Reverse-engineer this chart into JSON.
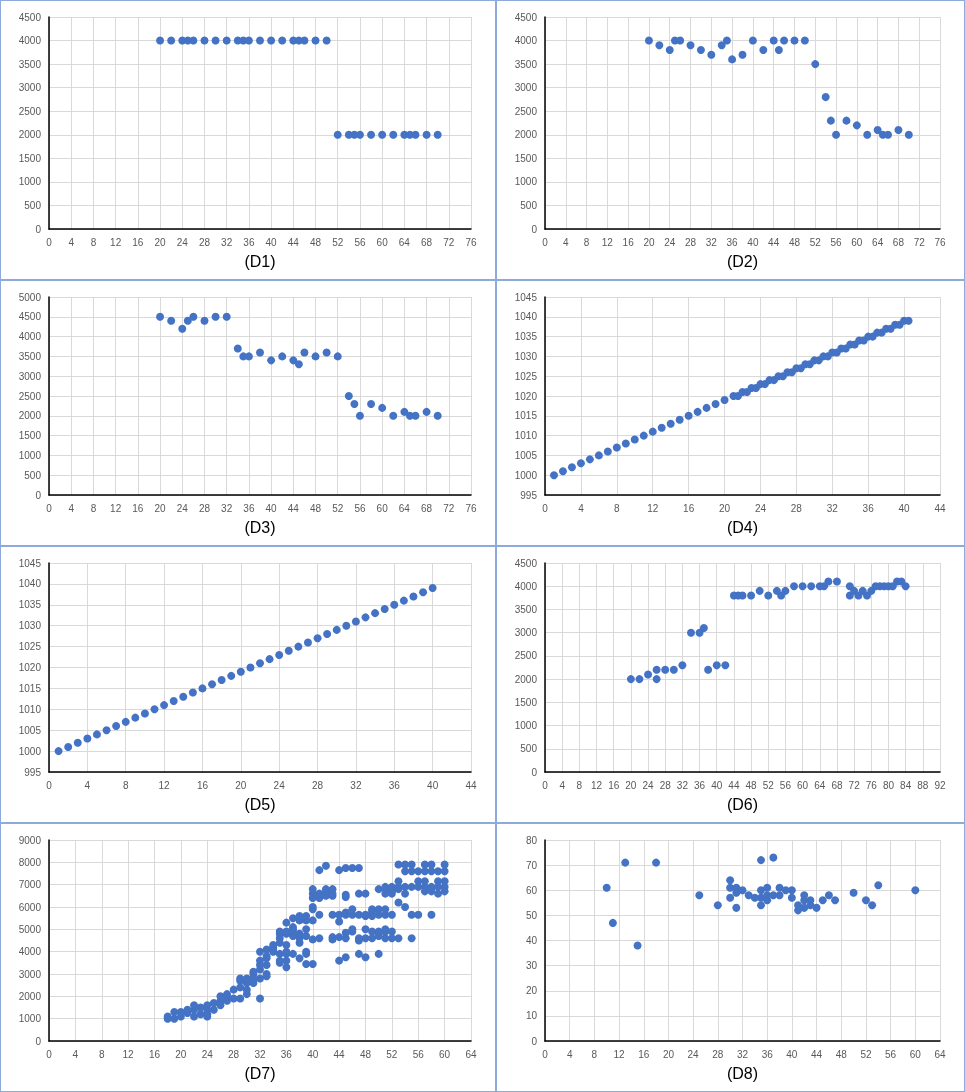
{
  "chart_data": [
    {
      "type": "scatter",
      "xlabel": "(D1)",
      "color": "#4472c4",
      "marker": "circle",
      "grid": true,
      "xlim": [
        0,
        76
      ],
      "xticks": [
        0,
        4,
        8,
        12,
        16,
        20,
        24,
        28,
        32,
        36,
        40,
        44,
        48,
        52,
        56,
        60,
        64,
        68,
        72,
        76
      ],
      "ylim": [
        0,
        4500
      ],
      "yticks": [
        0,
        500,
        1000,
        1500,
        2000,
        2500,
        3000,
        3500,
        4000,
        4500
      ],
      "x": [
        20,
        22,
        24,
        25,
        26,
        28,
        30,
        32,
        34,
        35,
        36,
        38,
        40,
        42,
        44,
        45,
        46,
        48,
        50,
        52,
        54,
        55,
        56,
        58,
        60,
        62,
        64,
        65,
        66,
        68,
        70
      ],
      "values": [
        4000,
        4000,
        4000,
        4000,
        4000,
        4000,
        4000,
        4000,
        4000,
        4000,
        4000,
        4000,
        4000,
        4000,
        4000,
        4000,
        4000,
        4000,
        4000,
        2000,
        2000,
        2000,
        2000,
        2000,
        2000,
        2000,
        2000,
        2000,
        2000,
        2000,
        2000
      ]
    },
    {
      "type": "scatter",
      "xlabel": "(D2)",
      "color": "#4472c4",
      "marker": "circle",
      "grid": true,
      "xlim": [
        0,
        76
      ],
      "xticks": [
        0,
        4,
        8,
        12,
        16,
        20,
        24,
        28,
        32,
        36,
        40,
        44,
        48,
        52,
        56,
        60,
        64,
        68,
        72,
        76
      ],
      "ylim": [
        0,
        4500
      ],
      "yticks": [
        0,
        500,
        1000,
        1500,
        2000,
        2500,
        3000,
        3500,
        4000,
        4500
      ],
      "x": [
        20,
        22,
        24,
        25,
        26,
        28,
        30,
        32,
        34,
        35,
        36,
        38,
        40,
        42,
        44,
        45,
        46,
        48,
        50,
        52,
        54,
        55,
        56,
        58,
        60,
        62,
        64,
        65,
        66,
        68,
        70
      ],
      "values": [
        4000,
        3900,
        3800,
        4000,
        4000,
        3900,
        3800,
        3700,
        3900,
        4000,
        3600,
        3700,
        4000,
        3800,
        4000,
        3800,
        4000,
        4000,
        4000,
        3500,
        2800,
        2300,
        2000,
        2300,
        2200,
        2000,
        2100,
        2000,
        2000,
        2100,
        2000
      ]
    },
    {
      "type": "scatter",
      "xlabel": "(D3)",
      "color": "#4472c4",
      "marker": "circle",
      "grid": true,
      "xlim": [
        0,
        76
      ],
      "xticks": [
        0,
        4,
        8,
        12,
        16,
        20,
        24,
        28,
        32,
        36,
        40,
        44,
        48,
        52,
        56,
        60,
        64,
        68,
        72,
        76
      ],
      "ylim": [
        0,
        5000
      ],
      "yticks": [
        0,
        500,
        1000,
        1500,
        2000,
        2500,
        3000,
        3500,
        4000,
        4500,
        5000
      ],
      "x": [
        20,
        22,
        24,
        25,
        26,
        28,
        30,
        32,
        34,
        35,
        36,
        38,
        40,
        42,
        44,
        45,
        46,
        48,
        50,
        52,
        54,
        55,
        56,
        58,
        60,
        62,
        64,
        65,
        66,
        68,
        70
      ],
      "values": [
        4500,
        4400,
        4200,
        4400,
        4500,
        4400,
        4500,
        4500,
        3700,
        3500,
        3500,
        3600,
        3400,
        3500,
        3400,
        3300,
        3600,
        3500,
        3600,
        3500,
        2500,
        2300,
        2000,
        2300,
        2200,
        2000,
        2100,
        2000,
        2000,
        2100,
        2000
      ]
    },
    {
      "type": "scatter",
      "xlabel": "(D4)",
      "color": "#4472c4",
      "marker": "circle",
      "grid": true,
      "xlim": [
        0,
        44
      ],
      "xticks": [
        0,
        4,
        8,
        12,
        16,
        20,
        24,
        28,
        32,
        36,
        40,
        44
      ],
      "ylim": [
        995,
        1045
      ],
      "yticks": [
        995,
        1000,
        1005,
        1010,
        1015,
        1020,
        1025,
        1030,
        1035,
        1040,
        1045
      ],
      "x": [
        1,
        2,
        3,
        4,
        5,
        6,
        7,
        8,
        9,
        10,
        11,
        12,
        13,
        14,
        15,
        16,
        17,
        18,
        19,
        20,
        21,
        21.5,
        22,
        22.5,
        23,
        23.5,
        24,
        24.5,
        25,
        25.5,
        26,
        26.5,
        27,
        27.5,
        28,
        28.5,
        29,
        29.5,
        30,
        30.5,
        31,
        31.5,
        32,
        32.5,
        33,
        33.5,
        34,
        34.5,
        35,
        35.5,
        36,
        36.5,
        37,
        37.5,
        38,
        38.5,
        39,
        39.5,
        40,
        40.5
      ],
      "values": [
        1000,
        1001,
        1002,
        1003,
        1004,
        1005,
        1006,
        1007,
        1008,
        1009,
        1010,
        1011,
        1012,
        1013,
        1014,
        1015,
        1016,
        1017,
        1018,
        1019,
        1020,
        1020,
        1021,
        1021,
        1022,
        1022,
        1023,
        1023,
        1024,
        1024,
        1025,
        1025,
        1026,
        1026,
        1027,
        1027,
        1028,
        1028,
        1029,
        1029,
        1030,
        1030,
        1031,
        1031,
        1032,
        1032,
        1033,
        1033,
        1034,
        1034,
        1035,
        1035,
        1036,
        1036,
        1037,
        1037,
        1038,
        1038,
        1039,
        1039
      ]
    },
    {
      "type": "scatter",
      "xlabel": "(D5)",
      "color": "#4472c4",
      "marker": "circle",
      "grid": true,
      "xlim": [
        0,
        44
      ],
      "xticks": [
        0,
        4,
        8,
        12,
        16,
        20,
        24,
        28,
        32,
        36,
        40,
        44
      ],
      "ylim": [
        995,
        1045
      ],
      "yticks": [
        995,
        1000,
        1005,
        1010,
        1015,
        1020,
        1025,
        1030,
        1035,
        1040,
        1045
      ],
      "x": [
        1,
        2,
        3,
        4,
        5,
        6,
        7,
        8,
        9,
        10,
        11,
        12,
        13,
        14,
        15,
        16,
        17,
        18,
        19,
        20,
        21,
        22,
        23,
        24,
        25,
        26,
        27,
        28,
        29,
        30,
        31,
        32,
        33,
        34,
        35,
        36,
        37,
        38,
        39,
        40
      ],
      "values": [
        1000,
        1001,
        1002,
        1003,
        1004,
        1005,
        1006,
        1007,
        1008,
        1009,
        1010,
        1011,
        1012,
        1013,
        1014,
        1015,
        1016,
        1017,
        1018,
        1019,
        1020,
        1021,
        1022,
        1023,
        1024,
        1025,
        1026,
        1027,
        1028,
        1029,
        1030,
        1031,
        1032,
        1033,
        1034,
        1035,
        1036,
        1037,
        1038,
        1039
      ]
    },
    {
      "type": "scatter",
      "xlabel": "(D6)",
      "color": "#4472c4",
      "marker": "circle",
      "grid": true,
      "xlim": [
        0,
        92
      ],
      "xticks": [
        0,
        4,
        8,
        12,
        16,
        20,
        24,
        28,
        32,
        36,
        40,
        44,
        48,
        52,
        56,
        60,
        64,
        68,
        72,
        76,
        80,
        84,
        88,
        92
      ],
      "ylim": [
        0,
        4500
      ],
      "yticks": [
        0,
        500,
        1000,
        1500,
        2000,
        2500,
        3000,
        3500,
        4000,
        4500
      ],
      "x": [
        20,
        22,
        24,
        26,
        26,
        28,
        30,
        32,
        34,
        36,
        37,
        38,
        40,
        42,
        44,
        45,
        46,
        48,
        50,
        52,
        54,
        55,
        56,
        58,
        60,
        62,
        64,
        65,
        66,
        68,
        71,
        71,
        72,
        73,
        74,
        75,
        76,
        77,
        78,
        79,
        80,
        81,
        82,
        83,
        84
      ],
      "values": [
        2000,
        2000,
        2100,
        2200,
        2000,
        2200,
        2200,
        2300,
        3000,
        3000,
        3100,
        2200,
        2300,
        2300,
        3800,
        3800,
        3800,
        3800,
        3900,
        3800,
        3900,
        3800,
        3900,
        4000,
        4000,
        4000,
        4000,
        4000,
        4100,
        4100,
        4000,
        3800,
        3900,
        3800,
        3900,
        3800,
        3900,
        4000,
        4000,
        4000,
        4000,
        4000,
        4100,
        4100,
        4000
      ]
    },
    {
      "type": "scatter",
      "xlabel": "(D7)",
      "color": "#4472c4",
      "marker": "circle",
      "grid": true,
      "xlim": [
        0,
        64
      ],
      "xticks": [
        0,
        4,
        8,
        12,
        16,
        20,
        24,
        28,
        32,
        36,
        40,
        44,
        48,
        52,
        56,
        60,
        64
      ],
      "ylim": [
        0,
        9000
      ],
      "yticks": [
        0,
        1000,
        2000,
        3000,
        4000,
        5000,
        6000,
        7000,
        8000,
        9000
      ],
      "x": [
        18,
        18,
        19,
        19,
        20,
        20,
        21,
        21,
        22,
        22,
        22,
        23,
        23,
        24,
        24,
        24,
        24,
        25,
        25,
        26,
        26,
        26,
        27,
        27,
        27,
        28,
        28,
        29,
        29,
        29,
        29,
        30,
        30,
        30,
        30,
        31,
        31,
        31,
        31,
        32,
        32,
        32,
        32,
        32,
        32,
        33,
        33,
        33,
        33,
        33,
        33,
        34,
        34,
        34,
        34,
        35,
        35,
        35,
        35,
        35,
        35,
        35,
        36,
        36,
        36,
        36,
        36,
        36,
        36,
        36,
        37,
        37,
        37,
        37,
        37,
        37,
        38,
        38,
        38,
        38,
        38,
        38,
        39,
        39,
        39,
        39,
        39,
        39,
        39,
        40,
        40,
        40,
        40,
        40,
        40,
        40,
        40,
        41,
        41,
        41,
        41,
        41,
        42,
        42,
        42,
        42,
        43,
        43,
        43,
        43,
        43,
        43,
        44,
        44,
        44,
        44,
        44,
        45,
        45,
        45,
        45,
        45,
        45,
        45,
        45,
        46,
        46,
        46,
        46,
        46,
        47,
        47,
        47,
        47,
        47,
        47,
        48,
        48,
        48,
        48,
        48,
        48,
        49,
        49,
        49,
        49,
        49,
        50,
        50,
        50,
        50,
        50,
        50,
        50,
        51,
        51,
        51,
        51,
        51,
        51,
        51,
        51,
        52,
        52,
        52,
        52,
        52,
        52,
        53,
        53,
        53,
        53,
        53,
        53,
        54,
        54,
        54,
        54,
        54,
        55,
        55,
        55,
        55,
        55,
        56,
        56,
        56,
        56,
        57,
        57,
        57,
        57,
        57,
        58,
        58,
        58,
        58,
        58,
        59,
        59,
        59,
        59,
        60,
        60,
        60,
        60,
        60
      ],
      "values": [
        1000,
        1100,
        1000,
        1300,
        1100,
        1300,
        1250,
        1400,
        1100,
        1400,
        1600,
        1200,
        1500,
        1100,
        1200,
        1400,
        1600,
        1400,
        1700,
        1600,
        1800,
        2000,
        1800,
        2000,
        2100,
        1900,
        2300,
        1900,
        2400,
        2700,
        2800,
        2100,
        2300,
        2600,
        2800,
        2600,
        2800,
        3000,
        3100,
        1900,
        2800,
        3200,
        3400,
        3600,
        4000,
        2900,
        3000,
        3400,
        3700,
        3800,
        4100,
        4000,
        4100,
        4200,
        4300,
        3500,
        3600,
        3900,
        4400,
        4600,
        4800,
        4900,
        3300,
        3600,
        3900,
        4000,
        4300,
        4800,
        4900,
        5300,
        3900,
        4700,
        4900,
        5000,
        5100,
        5500,
        3700,
        4400,
        4600,
        4800,
        5400,
        5600,
        3450,
        3900,
        4000,
        4700,
        5000,
        5400,
        5600,
        3450,
        4550,
        5400,
        5900,
        6000,
        6400,
        6600,
        6800,
        4600,
        5650,
        6400,
        6600,
        7650,
        6500,
        6700,
        6800,
        7850,
        4550,
        4650,
        5650,
        6500,
        6600,
        6800,
        3600,
        4650,
        5350,
        5650,
        7650,
        3750,
        4600,
        4850,
        5650,
        5750,
        6450,
        6550,
        7750,
        4900,
        5000,
        5650,
        5900,
        7750,
        3900,
        4500,
        4600,
        5650,
        6600,
        7750,
        3750,
        4600,
        5000,
        5600,
        5650,
        6600,
        4600,
        4900,
        5600,
        5800,
        5900,
        3900,
        4700,
        4800,
        4900,
        5650,
        5900,
        6800,
        4600,
        4900,
        5000,
        5650,
        5900,
        6600,
        6800,
        6900,
        4600,
        4900,
        5650,
        6600,
        6700,
        6900,
        4600,
        6200,
        6800,
        6900,
        7150,
        7900,
        6000,
        6600,
        6900,
        7600,
        7900,
        4600,
        5650,
        6900,
        7600,
        7900,
        5650,
        6900,
        7150,
        7600,
        6700,
        6900,
        7150,
        7600,
        7900,
        5650,
        6700,
        6900,
        7600,
        7900,
        6600,
        6900,
        7150,
        7600,
        6700,
        6900,
        7150,
        7600,
        7900
      ]
    },
    {
      "type": "scatter",
      "xlabel": "(D8)",
      "color": "#4472c4",
      "marker": "circle",
      "grid": true,
      "xlim": [
        0,
        64
      ],
      "xticks": [
        0,
        4,
        8,
        12,
        16,
        20,
        24,
        28,
        32,
        36,
        40,
        44,
        48,
        52,
        56,
        60,
        64
      ],
      "ylim": [
        0,
        80
      ],
      "yticks": [
        0,
        10,
        20,
        30,
        40,
        50,
        60,
        70,
        80
      ],
      "x": [
        10,
        11,
        13,
        15,
        18,
        25,
        28,
        30,
        30,
        30,
        31,
        31,
        31,
        32,
        33,
        34,
        35,
        35,
        35,
        35,
        36,
        36,
        36,
        37,
        37,
        38,
        38,
        39,
        40,
        40,
        41,
        41,
        42,
        42,
        42,
        43,
        43,
        44,
        45,
        46,
        47,
        50,
        52,
        53,
        54,
        60
      ],
      "values": [
        61,
        47,
        71,
        38,
        71,
        58,
        54,
        64,
        61,
        57,
        61,
        59,
        53,
        60,
        58,
        57,
        72,
        60,
        57,
        54,
        61,
        58,
        56,
        73,
        58,
        61,
        58,
        60,
        60,
        57,
        54,
        52,
        58,
        56,
        53,
        56,
        54,
        53,
        56,
        58,
        56,
        59,
        56,
        54,
        62,
        60
      ]
    }
  ]
}
